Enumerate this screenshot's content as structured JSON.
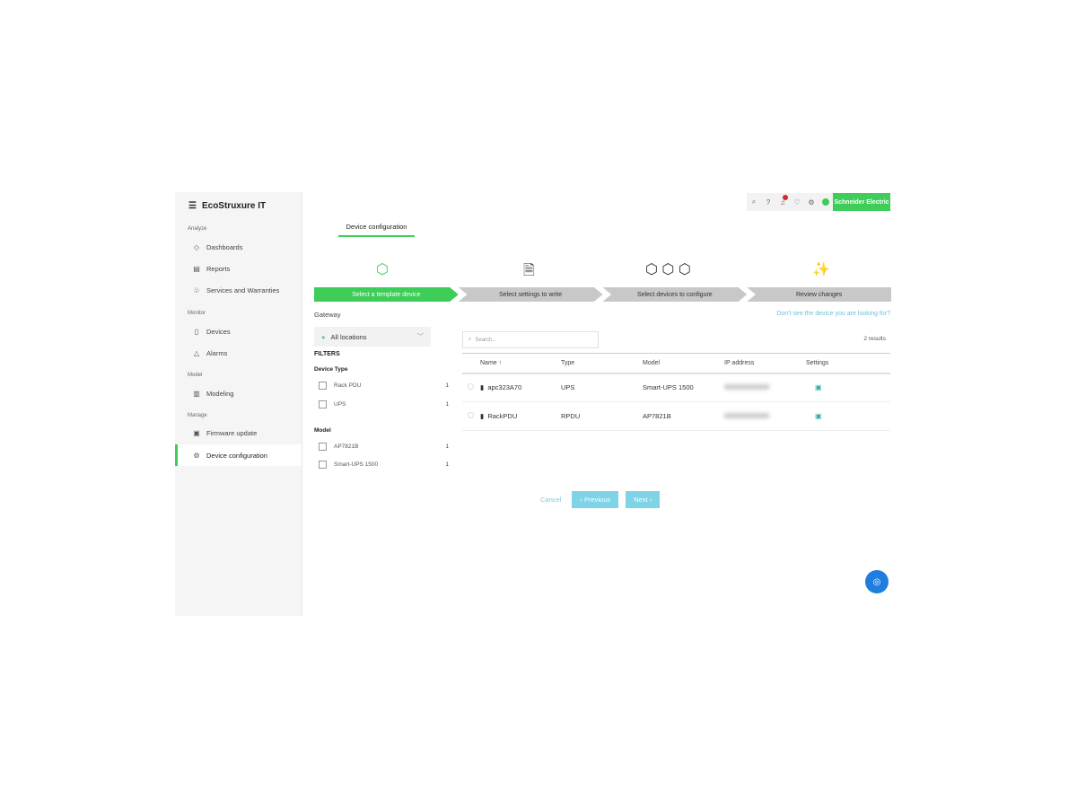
{
  "app": {
    "title": "EcoStruxure IT",
    "brand": "Schneider Electric"
  },
  "sidebar": {
    "sections": [
      {
        "label": "Analyze",
        "items": [
          {
            "label": "Dashboards",
            "icon": "dashboard-icon"
          },
          {
            "label": "Reports",
            "icon": "report-icon"
          },
          {
            "label": "Services and Warranties",
            "icon": "services-icon"
          }
        ]
      },
      {
        "label": "Monitor",
        "items": [
          {
            "label": "Devices",
            "icon": "device-icon"
          },
          {
            "label": "Alarms",
            "icon": "alarm-icon"
          }
        ]
      },
      {
        "label": "Model",
        "items": [
          {
            "label": "Modeling",
            "icon": "modeling-icon"
          }
        ]
      },
      {
        "label": "Manage",
        "items": [
          {
            "label": "Firmware update",
            "icon": "firmware-icon"
          },
          {
            "label": "Device configuration",
            "icon": "config-icon",
            "active": true
          }
        ]
      }
    ]
  },
  "tab": "Device configuration",
  "steps": [
    "Select a template device",
    "Select settings to write",
    "Select devices to configure",
    "Review changes"
  ],
  "gateway": {
    "label": "Gateway",
    "value": "All locations"
  },
  "filters": {
    "title": "FILTERS",
    "device_type": {
      "label": "Device Type",
      "items": [
        {
          "label": "Rack PDU",
          "count": "1"
        },
        {
          "label": "UPS",
          "count": "1"
        }
      ]
    },
    "model": {
      "label": "Model",
      "items": [
        {
          "label": "AP7821B",
          "count": "1"
        },
        {
          "label": "Smart-UPS 1500",
          "count": "1"
        }
      ]
    }
  },
  "help_link": "Don't see the device you are looking for?",
  "search": {
    "placeholder": "Search..."
  },
  "results": "2 results",
  "table": {
    "headers": [
      "Name ↑",
      "Type",
      "Model",
      "IP address",
      "Settings"
    ],
    "rows": [
      {
        "name": "apc323A70",
        "type": "UPS",
        "model": "Smart-UPS 1500"
      },
      {
        "name": "RackPDU",
        "type": "RPDU",
        "model": "AP7821B"
      }
    ]
  },
  "buttons": {
    "cancel": "Cancel",
    "previous": "‹ Previous",
    "next": "Next ›"
  },
  "colors": {
    "accent": "#3dcd58",
    "link": "#6cc3d5",
    "fab": "#1f7de0"
  }
}
